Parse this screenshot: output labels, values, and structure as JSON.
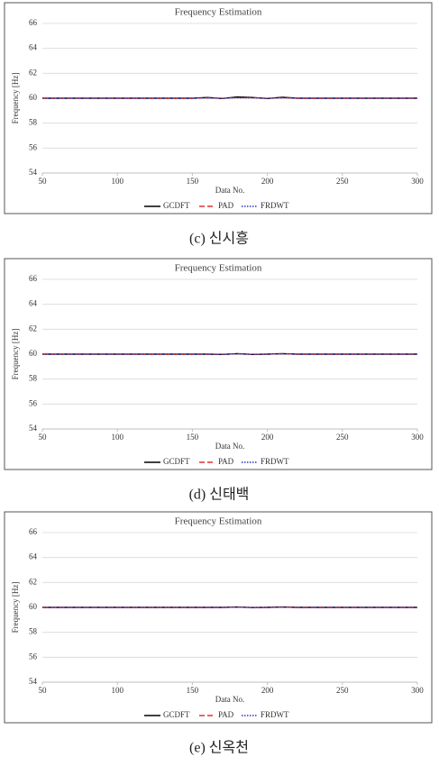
{
  "chart_data": [
    {
      "type": "line",
      "title": "Frequency Estimation",
      "x_label": "Data No.",
      "y_label": "Frequency [Hz]",
      "caption": "(c) 신시흥",
      "x": [
        50,
        60,
        70,
        80,
        90,
        100,
        110,
        120,
        130,
        140,
        150,
        160,
        170,
        180,
        190,
        200,
        210,
        220,
        230,
        240,
        250,
        260,
        270,
        280,
        290,
        300
      ],
      "xlim": [
        50,
        300
      ],
      "xticks": [
        50,
        100,
        150,
        200,
        250,
        300
      ],
      "ylim": [
        54,
        66
      ],
      "yticks": [
        54,
        56,
        58,
        60,
        62,
        64,
        66
      ],
      "grid": true,
      "series": [
        {
          "name": "GCDFT",
          "color": "#000000",
          "dash": "solid",
          "values": [
            60,
            60,
            60,
            60,
            60,
            60,
            60,
            60,
            60,
            60,
            60,
            60.06,
            59.98,
            60.1,
            60.06,
            59.98,
            60.08,
            60,
            60,
            60,
            60,
            60,
            60,
            60,
            60,
            60
          ]
        },
        {
          "name": "PAD",
          "color": "#e03030",
          "dash": "dashed",
          "values": [
            60,
            60,
            60,
            60,
            60,
            60,
            60,
            60,
            60,
            60,
            60,
            60.02,
            60,
            60.04,
            60.03,
            60,
            60.03,
            60,
            60,
            60,
            60,
            60,
            60,
            60,
            60,
            60
          ]
        },
        {
          "name": "FRDWT",
          "color": "#3030c0",
          "dash": "dotted",
          "values": [
            60,
            60,
            60,
            60,
            60,
            60,
            60,
            60,
            60,
            60,
            60,
            60.01,
            59.99,
            60.03,
            60.02,
            59.99,
            60.02,
            60,
            60,
            60,
            60,
            60,
            60,
            60,
            60,
            60
          ]
        }
      ]
    },
    {
      "type": "line",
      "title": "Frequency Estimation",
      "x_label": "Data No.",
      "y_label": "Frequency [Hz]",
      "caption": "(d) 신태백",
      "x": [
        50,
        60,
        70,
        80,
        90,
        100,
        110,
        120,
        130,
        140,
        150,
        160,
        170,
        180,
        190,
        200,
        210,
        220,
        230,
        240,
        250,
        260,
        270,
        280,
        290,
        300
      ],
      "xlim": [
        50,
        300
      ],
      "xticks": [
        50,
        100,
        150,
        200,
        250,
        300
      ],
      "ylim": [
        54,
        66
      ],
      "yticks": [
        54,
        56,
        58,
        60,
        62,
        64,
        66
      ],
      "grid": true,
      "series": [
        {
          "name": "GCDFT",
          "color": "#000000",
          "dash": "solid",
          "values": [
            60,
            60,
            60,
            60,
            60,
            60,
            60,
            60,
            60,
            60,
            60,
            60,
            59.98,
            60.04,
            59.98,
            60,
            60.04,
            60,
            60,
            60,
            60,
            60,
            60,
            60,
            60,
            60
          ]
        },
        {
          "name": "PAD",
          "color": "#e03030",
          "dash": "dashed",
          "values": [
            60,
            60,
            60,
            60,
            60,
            60,
            60,
            60,
            60,
            60,
            60,
            60,
            60,
            60.02,
            60,
            60,
            60.02,
            60,
            60,
            60,
            60,
            60,
            60,
            60,
            60,
            60
          ]
        },
        {
          "name": "FRDWT",
          "color": "#3030c0",
          "dash": "dotted",
          "values": [
            60,
            60,
            60,
            60,
            60,
            60,
            60,
            60,
            60,
            60,
            60,
            60,
            59.99,
            60.01,
            59.99,
            60,
            60.01,
            60,
            60,
            60,
            60,
            60,
            60,
            60,
            60,
            60
          ]
        }
      ]
    },
    {
      "type": "line",
      "title": "Frequency Estimation",
      "x_label": "Data No.",
      "y_label": "Frequency [Hz]",
      "caption": "(e) 신옥천",
      "x": [
        50,
        60,
        70,
        80,
        90,
        100,
        110,
        120,
        130,
        140,
        150,
        160,
        170,
        180,
        190,
        200,
        210,
        220,
        230,
        240,
        250,
        260,
        270,
        280,
        290,
        300
      ],
      "xlim": [
        50,
        300
      ],
      "xticks": [
        50,
        100,
        150,
        200,
        250,
        300
      ],
      "ylim": [
        54,
        66
      ],
      "yticks": [
        54,
        56,
        58,
        60,
        62,
        64,
        66
      ],
      "grid": true,
      "series": [
        {
          "name": "GCDFT",
          "color": "#000000",
          "dash": "solid",
          "values": [
            60,
            60,
            60,
            60,
            60,
            60,
            60,
            60,
            60,
            60,
            60,
            60,
            60,
            60.03,
            59.99,
            60,
            60.03,
            60,
            60,
            60,
            60,
            60,
            60,
            60,
            60,
            60
          ]
        },
        {
          "name": "PAD",
          "color": "#e03030",
          "dash": "dashed",
          "values": [
            60,
            60,
            60,
            60,
            60,
            60,
            60,
            60,
            60,
            60,
            60,
            60,
            60,
            60.01,
            60,
            60,
            60.01,
            60,
            60,
            60,
            60,
            60,
            60,
            60,
            60,
            60
          ]
        },
        {
          "name": "FRDWT",
          "color": "#3030c0",
          "dash": "dotted",
          "values": [
            60,
            60,
            60,
            60,
            60,
            60,
            60,
            60,
            60,
            60,
            60,
            60,
            60,
            60.01,
            60,
            60,
            60.01,
            60,
            60,
            60,
            60,
            60,
            60,
            60,
            60,
            60
          ]
        }
      ]
    }
  ]
}
